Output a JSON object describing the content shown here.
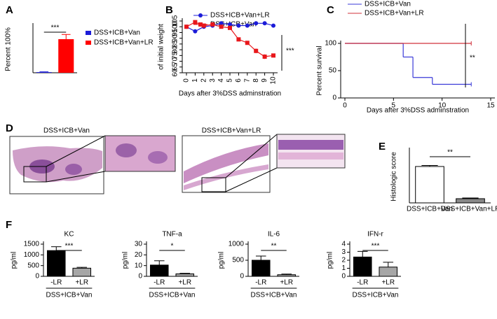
{
  "chart_data": [
    {
      "panel": "A",
      "type": "bar",
      "ylabel": "Percent 100%",
      "ylim": [
        0,
        30
      ],
      "legend": "right",
      "significance": "***",
      "series": [
        {
          "name": "DSS+ICB+Van",
          "color": "#1c1cd8",
          "values": [
            0.4
          ],
          "errors": [
            0.2
          ]
        },
        {
          "name": "DSS+ICB+Van+LR",
          "color": "#ff0000",
          "values": [
            21.5
          ],
          "errors": [
            3
          ]
        }
      ]
    },
    {
      "panel": "B",
      "type": "line",
      "ylabel": "of initial weight",
      "xlabel": "Days after 3%DSS adminstration",
      "x": [
        0,
        1,
        2,
        3,
        4,
        5,
        6,
        7,
        8,
        9,
        10
      ],
      "xlim": [
        0,
        10
      ],
      "xticks": [
        0,
        1,
        2,
        3,
        4,
        5,
        6,
        7,
        8,
        9,
        10
      ],
      "ylim": [
        60,
        105
      ],
      "yticks": [
        60,
        65,
        70,
        75,
        80,
        85,
        90,
        95,
        100,
        105
      ],
      "legend": "top",
      "significance": "***",
      "series": [
        {
          "name": "DSS+ICB+Van+LR",
          "color": "#1c1cd8",
          "marker": "circle",
          "values": [
            100,
            96,
            100,
            101,
            103,
            102,
            101,
            101,
            103,
            103,
            101
          ],
          "errors": [
            1,
            1.5,
            1,
            1,
            1,
            1,
            1,
            1,
            1,
            1,
            1
          ]
        },
        {
          "name": "DSS+ICB+Van",
          "color": "#e8171b",
          "marker": "square",
          "values": [
            100,
            104,
            101,
            102,
            100,
            99,
            89,
            86,
            79,
            74,
            75
          ],
          "errors": [
            1,
            1.5,
            1,
            1,
            1,
            1,
            1.5,
            1.5,
            2,
            2,
            1
          ]
        }
      ]
    },
    {
      "panel": "C",
      "type": "step",
      "ylabel": "Percent survival",
      "xlabel": "Days after 3%DSS adminstration",
      "xlim": [
        0,
        15
      ],
      "xticks": [
        0,
        5,
        10,
        15
      ],
      "ylim": [
        0,
        100
      ],
      "yticks": [
        0,
        50,
        100
      ],
      "legend": "top",
      "significance": "**",
      "series": [
        {
          "name": "DSS+ICB+Van",
          "color": "#3a3ad8",
          "x": [
            0,
            6,
            7,
            9,
            13
          ],
          "values": [
            100,
            75,
            37.5,
            25,
            25
          ]
        },
        {
          "name": "DSS+ICB+Van+LR",
          "color": "#d0303a",
          "x": [
            0,
            13
          ],
          "values": [
            100,
            100
          ]
        }
      ]
    },
    {
      "panel": "E",
      "type": "bar",
      "ylabel": "Histologic score",
      "ylim": [
        0,
        15
      ],
      "significance": "**",
      "categories": [
        "DSS+ICB+Van",
        "DSS+ICB+Van+LR"
      ],
      "values": [
        10.4,
        1.2
      ],
      "errors": [
        0.3,
        0.2
      ],
      "colors": [
        "#ffffff",
        "#888888"
      ]
    },
    {
      "panel": "F",
      "type": "bar",
      "title": "KC",
      "ylabel": "pg/ml",
      "group_label": "DSS+ICB+Van",
      "categories": [
        "-LR",
        "+LR"
      ],
      "values": [
        1200,
        380
      ],
      "errors": [
        180,
        40
      ],
      "colors": [
        "#000000",
        "#a6a6a6"
      ],
      "ylim": [
        0,
        1500
      ],
      "yticks": [
        0,
        500,
        1000,
        1500
      ],
      "significance": "***"
    },
    {
      "type": "bar",
      "title": "TNF-a",
      "ylabel": "pg/ml",
      "group_label": "DSS+ICB+Van",
      "categories": [
        "-LR",
        "+LR"
      ],
      "values": [
        10.5,
        2.3
      ],
      "errors": [
        4,
        0.5
      ],
      "colors": [
        "#000000",
        "#a6a6a6"
      ],
      "ylim": [
        0,
        30
      ],
      "yticks": [
        0,
        10,
        20,
        30
      ],
      "significance": "*"
    },
    {
      "type": "bar",
      "title": "IL-6",
      "ylabel": "pg/ml",
      "group_label": "DSS+ICB+Van",
      "categories": [
        "-LR",
        "+LR"
      ],
      "values": [
        500,
        50
      ],
      "errors": [
        130,
        20
      ],
      "colors": [
        "#000000",
        "#a6a6a6"
      ],
      "ylim": [
        0,
        1000
      ],
      "yticks": [
        0,
        500,
        1000
      ],
      "significance": "**"
    },
    {
      "type": "bar",
      "title": "IFN-r",
      "ylabel": "pg/ml",
      "group_label": "DSS+ICB+Van",
      "categories": [
        "-LR",
        "+LR"
      ],
      "values": [
        2.4,
        1.15
      ],
      "errors": [
        0.7,
        0.6
      ],
      "colors": [
        "#000000",
        "#a6a6a6"
      ],
      "ylim": [
        0,
        4
      ],
      "yticks": [
        0,
        1,
        2,
        3,
        4
      ],
      "significance": "***"
    }
  ],
  "panel_d": {
    "panel": "D",
    "titles": [
      "DSS+ICB+Van",
      "DSS+ICB+Van+LR"
    ]
  }
}
